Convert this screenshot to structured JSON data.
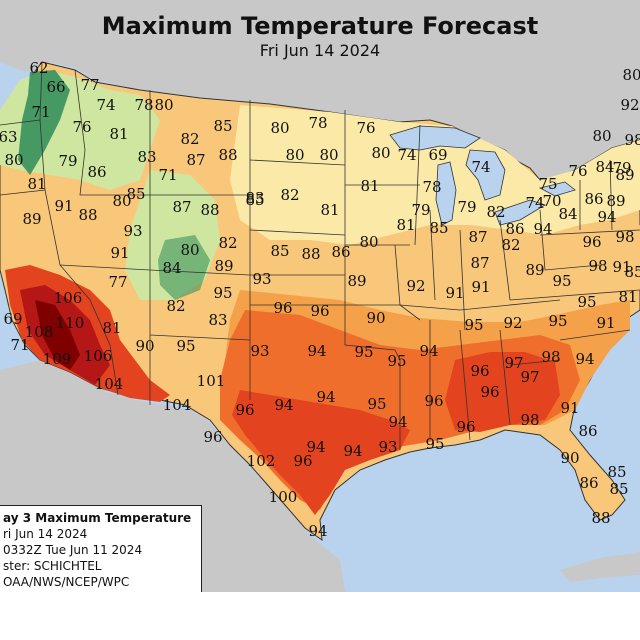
{
  "header": {
    "title": "Maximum Temperature Forecast",
    "subtitle": "Fri Jun 14 2024"
  },
  "legend": {
    "line1": "ay 3 Maximum Temperature",
    "line2": "ri Jun 14 2024",
    "line3": "0332Z Tue Jun 11 2024",
    "line4": "ster: SCHICHTEL",
    "line5": "OAA/NWS/NCEP/WPC"
  },
  "colors": {
    "ocean": "#b9d3ee",
    "foreign_land": "#c8c8c8",
    "band_60s": "#2e8b57",
    "band_70s": "#cfe6a0",
    "band_80s": "#fbe9a8",
    "band_85": "#f8c77a",
    "band_90": "#f4a14a",
    "band_95": "#ef6e2c",
    "band_100": "#e3441f",
    "band_105": "#b51616",
    "band_110": "#800000",
    "borders": "#333333"
  },
  "temperatures": [
    {
      "id": "t1",
      "v": "62"
    },
    {
      "id": "t2",
      "v": "77"
    },
    {
      "id": "t3",
      "v": "66"
    },
    {
      "id": "t4",
      "v": "74"
    },
    {
      "id": "t5",
      "v": "78"
    },
    {
      "id": "t6",
      "v": "80"
    },
    {
      "id": "t7",
      "v": "71"
    },
    {
      "id": "t8",
      "v": "63"
    },
    {
      "id": "t9",
      "v": "76"
    },
    {
      "id": "t10",
      "v": "81"
    },
    {
      "id": "t11",
      "v": "82"
    },
    {
      "id": "t12",
      "v": "85"
    },
    {
      "id": "t13",
      "v": "80"
    },
    {
      "id": "t14",
      "v": "78"
    },
    {
      "id": "t15",
      "v": "76"
    },
    {
      "id": "t16",
      "v": "80"
    },
    {
      "id": "t17",
      "v": "80"
    },
    {
      "id": "t18",
      "v": "79"
    },
    {
      "id": "t19",
      "v": "86"
    },
    {
      "id": "t20",
      "v": "83"
    },
    {
      "id": "t21",
      "v": "87"
    },
    {
      "id": "t22",
      "v": "88"
    },
    {
      "id": "t23",
      "v": "80"
    },
    {
      "id": "t24",
      "v": "80"
    },
    {
      "id": "t25",
      "v": "74"
    },
    {
      "id": "t26",
      "v": "69"
    },
    {
      "id": "t27",
      "v": "81"
    },
    {
      "id": "t28",
      "v": "71"
    },
    {
      "id": "t29",
      "v": "85"
    },
    {
      "id": "t30",
      "v": "87"
    },
    {
      "id": "t31",
      "v": "88"
    },
    {
      "id": "t32",
      "v": "83"
    },
    {
      "id": "t33",
      "v": "82"
    },
    {
      "id": "t34",
      "v": "81"
    },
    {
      "id": "t35",
      "v": "81"
    },
    {
      "id": "t36",
      "v": "78"
    },
    {
      "id": "t37",
      "v": "74"
    },
    {
      "id": "t38",
      "v": "79"
    },
    {
      "id": "t39",
      "v": "82"
    },
    {
      "id": "t40",
      "v": "79"
    },
    {
      "id": "t41",
      "v": "74"
    },
    {
      "id": "t42",
      "v": "75"
    },
    {
      "id": "t43",
      "v": "70"
    },
    {
      "id": "t44",
      "v": "84"
    },
    {
      "id": "t45",
      "v": "76"
    },
    {
      "id": "t46",
      "v": "80"
    },
    {
      "id": "t47",
      "v": "84"
    },
    {
      "id": "t48",
      "v": "89"
    },
    {
      "id": "t49",
      "v": "86"
    },
    {
      "id": "t50",
      "v": "89"
    },
    {
      "id": "t51",
      "v": "94"
    },
    {
      "id": "t52",
      "v": "89"
    },
    {
      "id": "t53",
      "v": "91"
    },
    {
      "id": "t54",
      "v": "88"
    },
    {
      "id": "t55",
      "v": "93"
    },
    {
      "id": "t56",
      "v": "80"
    },
    {
      "id": "t57",
      "v": "82"
    },
    {
      "id": "t58",
      "v": "85"
    },
    {
      "id": "t59",
      "v": "85"
    },
    {
      "id": "t60",
      "v": "88"
    },
    {
      "id": "t61",
      "v": "86"
    },
    {
      "id": "t62",
      "v": "80"
    },
    {
      "id": "t63",
      "v": "81"
    },
    {
      "id": "t64",
      "v": "85"
    },
    {
      "id": "t65",
      "v": "87"
    },
    {
      "id": "t66",
      "v": "82"
    },
    {
      "id": "t67",
      "v": "94"
    },
    {
      "id": "t68",
      "v": "96"
    },
    {
      "id": "t69",
      "v": "98"
    },
    {
      "id": "t70",
      "v": "91"
    },
    {
      "id": "t71",
      "v": "86"
    },
    {
      "id": "t72",
      "v": "91"
    },
    {
      "id": "t73",
      "v": "84"
    },
    {
      "id": "t74",
      "v": "80"
    },
    {
      "id": "t75",
      "v": "89"
    },
    {
      "id": "t76",
      "v": "93"
    },
    {
      "id": "t77",
      "v": "89"
    },
    {
      "id": "t78",
      "v": "92"
    },
    {
      "id": "t79",
      "v": "91"
    },
    {
      "id": "t80",
      "v": "87"
    },
    {
      "id": "t81",
      "v": "91"
    },
    {
      "id": "t82",
      "v": "89"
    },
    {
      "id": "t83",
      "v": "95"
    },
    {
      "id": "t84",
      "v": "77"
    },
    {
      "id": "t85",
      "v": "106"
    },
    {
      "id": "t86",
      "v": "95"
    },
    {
      "id": "t87",
      "v": "82"
    },
    {
      "id": "t88",
      "v": "96"
    },
    {
      "id": "t89",
      "v": "96"
    },
    {
      "id": "t90",
      "v": "95"
    },
    {
      "id": "t91",
      "v": "69"
    },
    {
      "id": "t92",
      "v": "110"
    },
    {
      "id": "t93",
      "v": "108"
    },
    {
      "id": "t94",
      "v": "81"
    },
    {
      "id": "t95",
      "v": "83"
    },
    {
      "id": "t96",
      "v": "90"
    },
    {
      "id": "t97",
      "v": "95"
    },
    {
      "id": "t98",
      "v": "92"
    },
    {
      "id": "t99",
      "v": "95"
    },
    {
      "id": "t100",
      "v": "91"
    },
    {
      "id": "t101",
      "v": "71"
    },
    {
      "id": "t102",
      "v": "90"
    },
    {
      "id": "t103",
      "v": "95"
    },
    {
      "id": "t104",
      "v": "93"
    },
    {
      "id": "t105",
      "v": "94"
    },
    {
      "id": "t106",
      "v": "95"
    },
    {
      "id": "t107",
      "v": "95"
    },
    {
      "id": "t108",
      "v": "94"
    },
    {
      "id": "t109",
      "v": "109"
    },
    {
      "id": "t110",
      "v": "106"
    },
    {
      "id": "t111",
      "v": "97"
    },
    {
      "id": "t112",
      "v": "98"
    },
    {
      "id": "t113",
      "v": "94"
    },
    {
      "id": "t114",
      "v": "96"
    },
    {
      "id": "t115",
      "v": "97"
    },
    {
      "id": "t116",
      "v": "101"
    },
    {
      "id": "t117",
      "v": "104"
    },
    {
      "id": "t118",
      "v": "94"
    },
    {
      "id": "t119",
      "v": "95"
    },
    {
      "id": "t120",
      "v": "96"
    },
    {
      "id": "t121",
      "v": "96"
    },
    {
      "id": "t122",
      "v": "91"
    },
    {
      "id": "t123",
      "v": "104"
    },
    {
      "id": "t124",
      "v": "96"
    },
    {
      "id": "t125",
      "v": "94"
    },
    {
      "id": "t126",
      "v": "94"
    },
    {
      "id": "t127",
      "v": "98"
    },
    {
      "id": "t128",
      "v": "96"
    },
    {
      "id": "t129",
      "v": "86"
    },
    {
      "id": "t130",
      "v": "96"
    },
    {
      "id": "t131",
      "v": "95"
    },
    {
      "id": "t132",
      "v": "94"
    },
    {
      "id": "t133",
      "v": "93"
    },
    {
      "id": "t134",
      "v": "94"
    },
    {
      "id": "t135",
      "v": "102"
    },
    {
      "id": "t136",
      "v": "96"
    },
    {
      "id": "t137",
      "v": "90"
    },
    {
      "id": "t138",
      "v": "85"
    },
    {
      "id": "t139",
      "v": "86"
    },
    {
      "id": "t140",
      "v": "85"
    },
    {
      "id": "t141",
      "v": "100"
    },
    {
      "id": "t142",
      "v": "88"
    },
    {
      "id": "t143",
      "v": "94"
    },
    {
      "id": "t144",
      "v": "80"
    },
    {
      "id": "t145",
      "v": "92"
    },
    {
      "id": "t146",
      "v": "98"
    },
    {
      "id": "t147",
      "v": "79"
    },
    {
      "id": "t148",
      "v": "98"
    },
    {
      "id": "t149",
      "v": "85"
    },
    {
      "id": "t150",
      "v": "81"
    }
  ]
}
